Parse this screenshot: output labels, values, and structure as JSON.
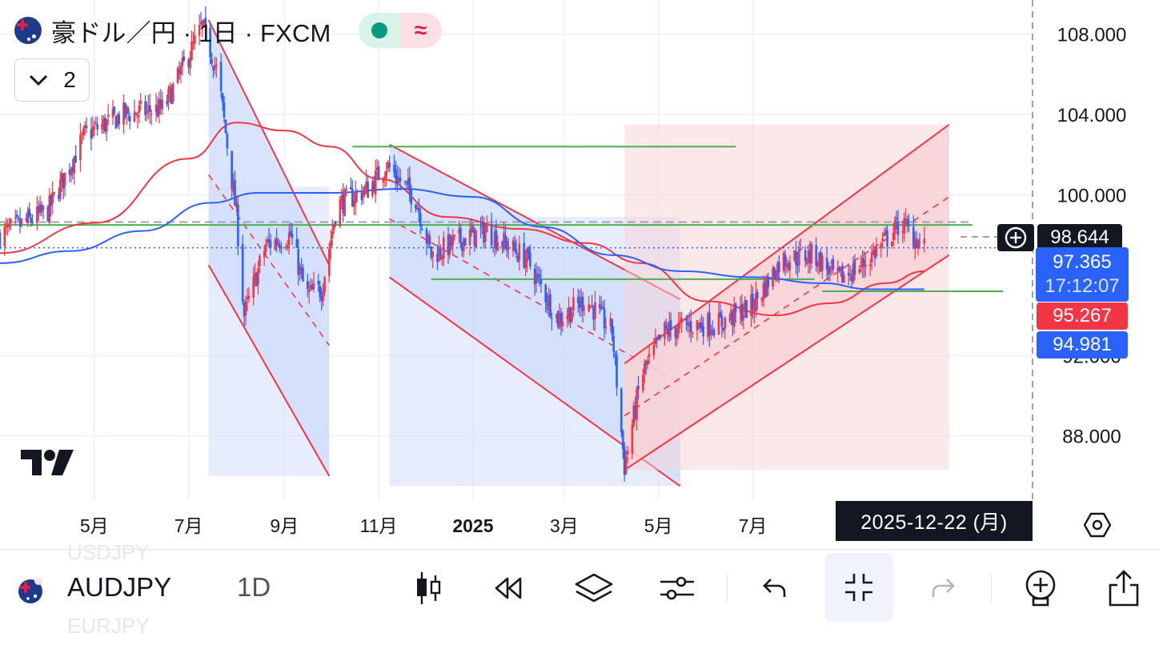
{
  "header": {
    "title": "豪ドル／円 · 1日 · FXCM",
    "indicators_count": "2",
    "status_icon": "live-dot-icon",
    "delay_icon": "wave-icon",
    "colors": {
      "live": "#089981",
      "delay": "#e11d48"
    }
  },
  "price_labels": {
    "crosshair_price": "98.644",
    "current_price": "97.365",
    "countdown": "17:12:07",
    "ma_red": "95.267",
    "ma_blue": "94.981",
    "crosshair_date": "2025-12-22 (月)"
  },
  "bottom_bar": {
    "symbol": "AUDJPY",
    "interval": "1D",
    "ghost_prev_symbol": "USDJPY",
    "ghost_next_symbol": "EURJPY",
    "icons": [
      "candles-icon",
      "replay-icon",
      "layers-icon",
      "indicators-settings-icon",
      "undo-icon",
      "collapse-icon",
      "redo-icon",
      "alert-add-icon",
      "share-icon"
    ]
  },
  "chart_data": {
    "type": "candlestick",
    "symbol": "豪ドル／円",
    "y_ticks": [
      {
        "label": "108.000",
        "value": 108
      },
      {
        "label": "104.000",
        "value": 104
      },
      {
        "label": "100.000",
        "value": 100
      },
      {
        "label": "92.000",
        "value": 92
      },
      {
        "label": "88.000",
        "value": 88
      }
    ],
    "x_ticks": [
      {
        "label": "5月",
        "date": "2024-05-01",
        "bold": false
      },
      {
        "label": "7月",
        "date": "2024-07-01",
        "bold": false
      },
      {
        "label": "9月",
        "date": "2024-09-01",
        "bold": false
      },
      {
        "label": "11月",
        "date": "2024-11-01",
        "bold": false
      },
      {
        "label": "2025",
        "date": "2025-01-01",
        "bold": true
      },
      {
        "label": "3月",
        "date": "2025-03-01",
        "bold": false
      },
      {
        "label": "5月",
        "date": "2025-05-01",
        "bold": false
      },
      {
        "label": "7月",
        "date": "2025-07-01",
        "bold": false
      }
    ],
    "x_range": [
      "2024-03-01",
      "2025-12-29"
    ],
    "y_range": [
      84.8,
      109.7
    ],
    "colors": {
      "up": "#f23645",
      "down": "#2962ff",
      "ma_red": "#f23645",
      "ma_blue": "#2962ff",
      "hline": "#4caf50"
    },
    "anchors": [
      {
        "date": "2024-03-01",
        "price": 98.0
      },
      {
        "date": "2024-04-01",
        "price": 99.2
      },
      {
        "date": "2024-04-25",
        "price": 103.0
      },
      {
        "date": "2024-05-20",
        "price": 104.0
      },
      {
        "date": "2024-06-15",
        "price": 104.3
      },
      {
        "date": "2024-07-10",
        "price": 108.4
      },
      {
        "date": "2024-07-20",
        "price": 106.0
      },
      {
        "date": "2024-08-01",
        "price": 99.0
      },
      {
        "date": "2024-08-06",
        "price": 94.0
      },
      {
        "date": "2024-08-20",
        "price": 97.5
      },
      {
        "date": "2024-09-05",
        "price": 98.0
      },
      {
        "date": "2024-09-15",
        "price": 95.0
      },
      {
        "date": "2024-09-25",
        "price": 95.3
      },
      {
        "date": "2024-10-05",
        "price": 99.5
      },
      {
        "date": "2024-10-25",
        "price": 100.3
      },
      {
        "date": "2024-11-06",
        "price": 101.5
      },
      {
        "date": "2024-11-25",
        "price": 99.8
      },
      {
        "date": "2024-12-05",
        "price": 97.0
      },
      {
        "date": "2024-12-25",
        "price": 97.8
      },
      {
        "date": "2025-01-10",
        "price": 98.2
      },
      {
        "date": "2025-02-05",
        "price": 96.8
      },
      {
        "date": "2025-02-25",
        "price": 93.8
      },
      {
        "date": "2025-03-15",
        "price": 94.8
      },
      {
        "date": "2025-04-01",
        "price": 93.2
      },
      {
        "date": "2025-04-09",
        "price": 86.5
      },
      {
        "date": "2025-04-20",
        "price": 91.0
      },
      {
        "date": "2025-05-05",
        "price": 93.2
      },
      {
        "date": "2025-05-20",
        "price": 93.5
      },
      {
        "date": "2025-06-10",
        "price": 93.6
      },
      {
        "date": "2025-07-01",
        "price": 94.5
      },
      {
        "date": "2025-07-20",
        "price": 96.8
      },
      {
        "date": "2025-08-10",
        "price": 97.0
      },
      {
        "date": "2025-08-25",
        "price": 95.8
      },
      {
        "date": "2025-09-10",
        "price": 96.5
      },
      {
        "date": "2025-10-05",
        "price": 98.6
      },
      {
        "date": "2025-10-20",
        "price": 97.4
      }
    ],
    "moving_averages": [
      {
        "color": "#f23645",
        "points": [
          [
            "2024-03-01",
            97.1
          ],
          [
            "2024-05-01",
            98.6
          ],
          [
            "2024-07-01",
            101.8
          ],
          [
            "2024-08-01",
            103.6
          ],
          [
            "2024-09-01",
            103.2
          ],
          [
            "2024-10-01",
            102.4
          ],
          [
            "2024-11-01",
            100.8
          ],
          [
            "2024-12-15",
            98.9
          ],
          [
            "2025-02-01",
            98.3
          ],
          [
            "2025-03-15",
            97.6
          ],
          [
            "2025-04-20",
            96.6
          ],
          [
            "2025-06-01",
            94.7
          ],
          [
            "2025-07-15",
            94.0
          ],
          [
            "2025-08-20",
            94.6
          ],
          [
            "2025-09-25",
            95.6
          ],
          [
            "2025-10-20",
            96.2
          ]
        ]
      },
      {
        "color": "#2962ff",
        "points": [
          [
            "2024-03-01",
            96.6
          ],
          [
            "2024-04-15",
            97.2
          ],
          [
            "2024-06-01",
            98.2
          ],
          [
            "2024-07-15",
            99.6
          ],
          [
            "2024-08-15",
            100.1
          ],
          [
            "2024-10-01",
            100.1
          ],
          [
            "2024-11-15",
            100.3
          ],
          [
            "2025-01-01",
            99.9
          ],
          [
            "2025-02-15",
            98.4
          ],
          [
            "2025-04-01",
            97.0
          ],
          [
            "2025-05-15",
            96.2
          ],
          [
            "2025-07-01",
            95.9
          ],
          [
            "2025-08-15",
            95.6
          ],
          [
            "2025-09-15",
            95.3
          ],
          [
            "2025-10-20",
            95.3
          ]
        ]
      }
    ],
    "horizontal_lines": [
      {
        "price": 98.644,
        "from": "2024-03-01",
        "to": "2025-11-20",
        "style": "dashed",
        "color": "#9ca3af"
      },
      {
        "price": 98.5,
        "from": "2024-03-01",
        "to": "2025-11-20",
        "style": "solid",
        "color": "#4caf50"
      },
      {
        "price": 97.365,
        "from": "2024-03-01",
        "to": "2025-12-29",
        "style": "dotted",
        "color": "#2962ff"
      },
      {
        "price": 102.4,
        "from": "2024-10-15",
        "to": "2025-06-20",
        "style": "solid",
        "color": "#4caf50"
      },
      {
        "price": 95.8,
        "from": "2024-12-05",
        "to": "2025-08-10",
        "style": "solid",
        "color": "#4caf50"
      },
      {
        "price": 95.2,
        "from": "2025-08-15",
        "to": "2025-12-10",
        "style": "solid",
        "color": "#4caf50"
      }
    ],
    "regression_channels": [
      {
        "fill": "#cfdcfb",
        "from": "2024-07-14",
        "to": "2024-09-30",
        "upper": [
          108.7,
          96.5
        ],
        "mid": [
          101.0,
          92.5
        ],
        "lower": [
          96.5,
          86.0
        ],
        "box": [
          100.4,
          86.0
        ]
      },
      {
        "fill": "#cfdcfb",
        "from": "2024-11-08",
        "to": "2025-05-15",
        "upper": [
          102.5,
          94.8
        ],
        "mid": [
          98.8,
          90.6
        ],
        "lower": [
          95.9,
          85.5
        ],
        "box": [
          98.9,
          85.5
        ]
      },
      {
        "fill": "#f8d1d4",
        "from": "2025-04-09",
        "to": "2025-11-05",
        "upper": [
          91.6,
          103.5
        ],
        "mid": [
          89.0,
          99.9
        ],
        "lower": [
          86.3,
          97.0
        ],
        "box": [
          103.5,
          86.3
        ]
      }
    ],
    "last_price": 97.365
  }
}
